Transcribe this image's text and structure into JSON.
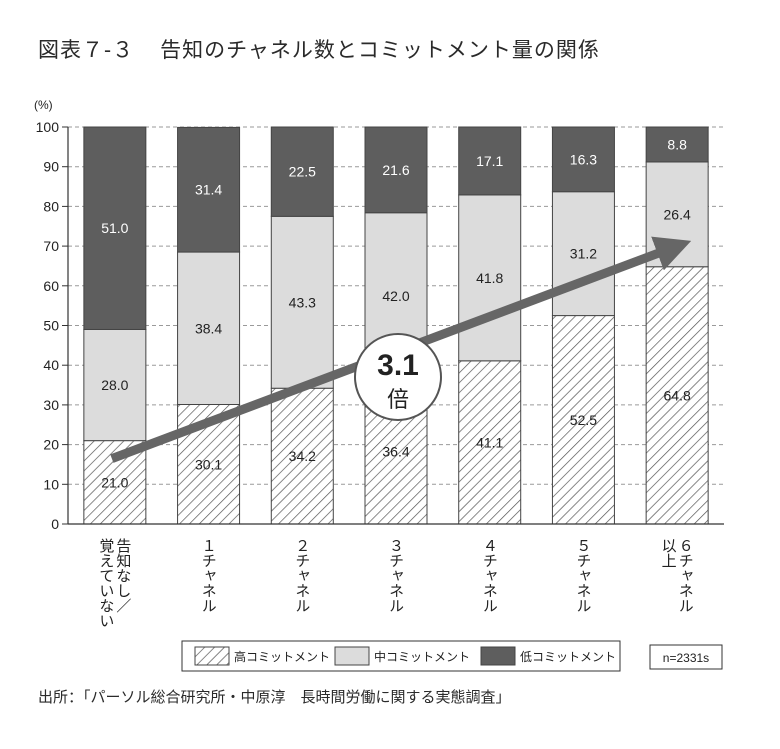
{
  "header": {
    "figure_number": "図表７-３",
    "title": "告知のチャネル数とコミットメント量の関係"
  },
  "footer": {
    "source": "出所：「パーソル総合研究所・中原淳　長時間労働に関する実態調査」"
  },
  "chart_data": {
    "type": "bar",
    "stacked": true,
    "y_unit_label": "(%)",
    "ylim": [
      0,
      100
    ],
    "yticks": [
      0,
      10,
      20,
      30,
      40,
      50,
      60,
      70,
      80,
      90,
      100
    ],
    "grid": true,
    "categories": [
      "告知なし／覚えていない",
      "１チャネル",
      "２チャネル",
      "３チャネル",
      "４チャネル",
      "５チャネル",
      "６チャネル以上"
    ],
    "category_columns": [
      [
        "覚えていない",
        "告知なし／"
      ],
      [
        "１チャネル"
      ],
      [
        "２チャネル"
      ],
      [
        "３チャネル"
      ],
      [
        "４チャネル"
      ],
      [
        "５チャネル"
      ],
      [
        "以上",
        "６チャネル"
      ]
    ],
    "series": [
      {
        "name": "高コミットメント",
        "values": [
          21.0,
          30.1,
          34.2,
          36.4,
          41.1,
          52.5,
          64.8
        ],
        "fill": "hatch",
        "color": "#ffffff"
      },
      {
        "name": "中コミットメント",
        "values": [
          28.0,
          38.4,
          43.3,
          42.0,
          41.8,
          31.2,
          26.4
        ],
        "fill": "solid",
        "color": "#dcdcdc"
      },
      {
        "name": "低コミットメント",
        "values": [
          51.0,
          31.4,
          22.5,
          21.6,
          17.1,
          16.3,
          8.8
        ],
        "fill": "solid",
        "color": "#5e5e5e"
      }
    ],
    "annotation": {
      "value": "3.1",
      "unit": "倍"
    },
    "sample_size": "n=2331s",
    "legend_placement": "bottom"
  }
}
